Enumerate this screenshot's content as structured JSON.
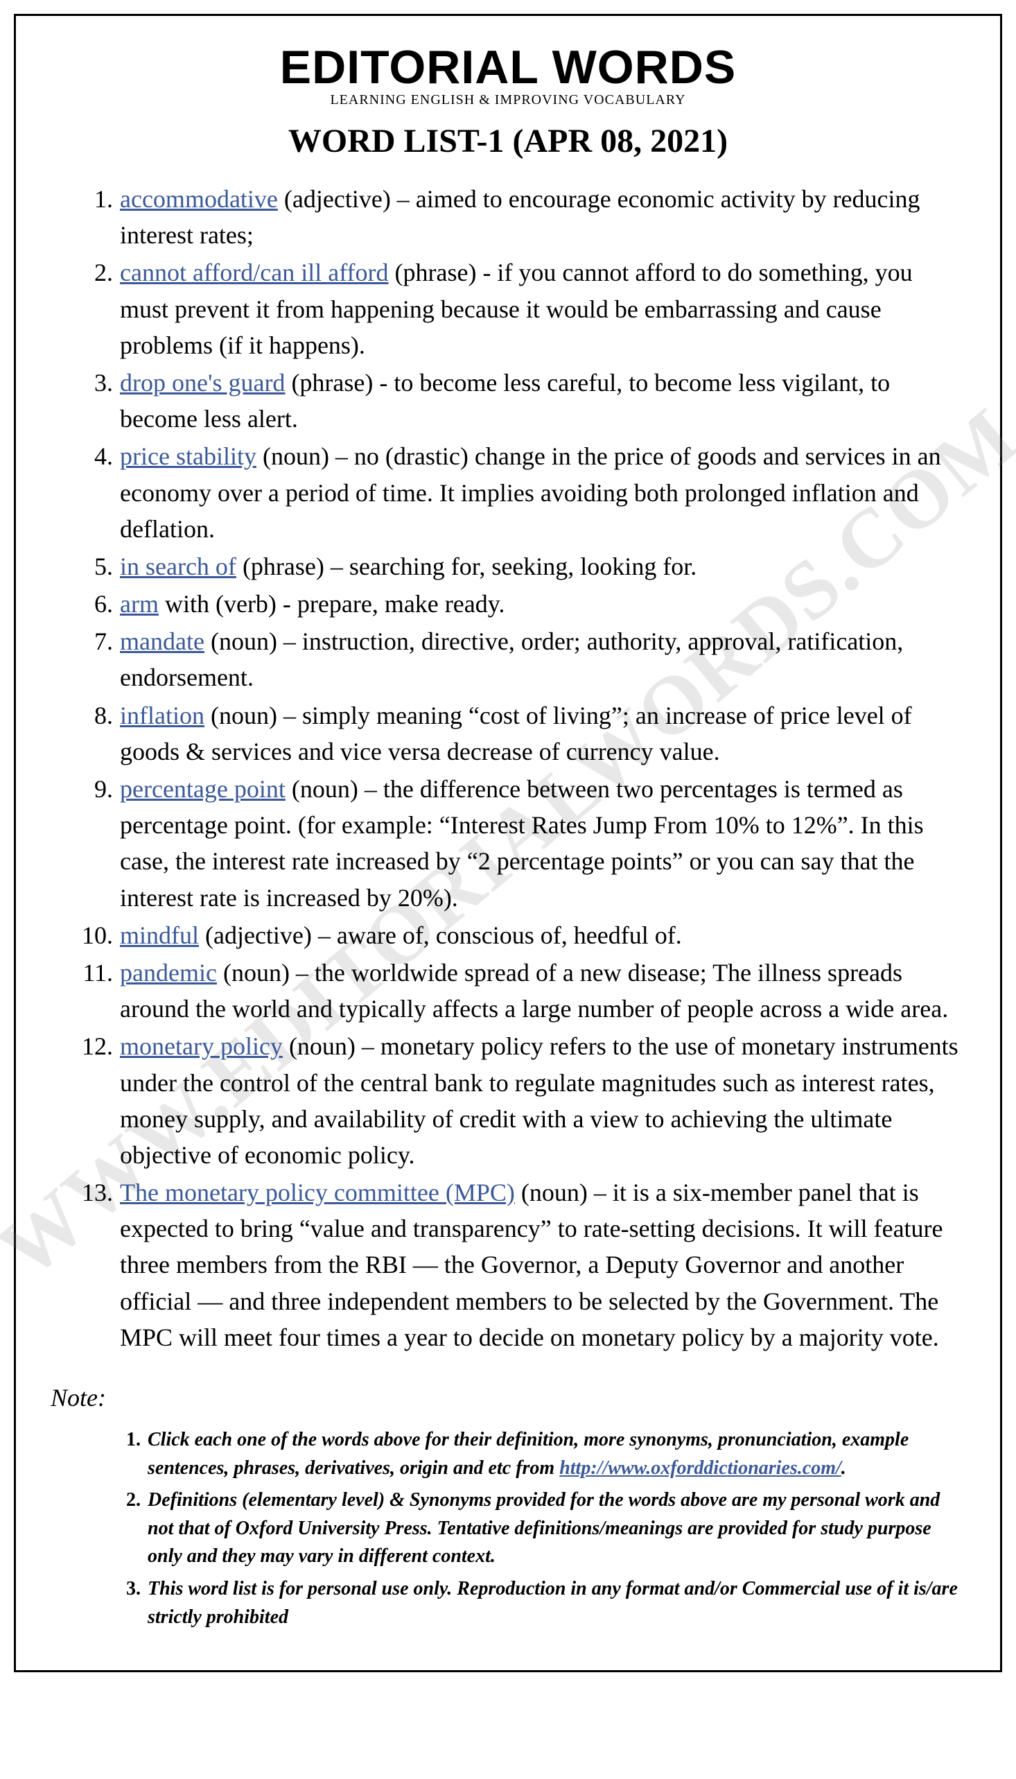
{
  "header": {
    "brand": "EDITORIAL WORDS",
    "tagline": "LEARNING ENGLISH & IMPROVING VOCABULARY",
    "title": "WORD LIST-1 (APR 08, 2021)"
  },
  "watermark": "WWW.EDITORIALWORDS.COM",
  "colors": {
    "link": "#3b5998",
    "text": "#000000",
    "border": "#000000",
    "watermark": "rgba(128,128,128,0.18)"
  },
  "words": [
    {
      "n": "1.",
      "term": "accommodative",
      "rest": " (adjective) – aimed to encourage economic activity by reducing interest rates;"
    },
    {
      "n": "2.",
      "term": "cannot afford/can ill afford",
      "rest": " (phrase) - if you cannot afford to do something, you must prevent it from happening because it would be embarrassing and cause problems (if it happens)."
    },
    {
      "n": "3.",
      "term": "drop one's guard",
      "rest": " (phrase) - to become less careful, to become less vigilant, to become less alert."
    },
    {
      "n": "4.",
      "term": "price stability",
      "rest": " (noun) – no (drastic) change in the price of goods and services in an economy over a period of time. It implies avoiding both prolonged inflation and deflation."
    },
    {
      "n": "5.",
      "term": "in search of",
      "rest": " (phrase) – searching for, seeking, looking for."
    },
    {
      "n": "6.",
      "term": "arm",
      "rest": " with (verb) - prepare, make ready."
    },
    {
      "n": "7.",
      "term": "mandate",
      "rest": " (noun) – instruction, directive, order; authority, approval, ratification, endorsement."
    },
    {
      "n": "8.",
      "term": "inflation",
      "rest": " (noun) – simply meaning “cost of living”; an increase of price level of goods & services and vice versa decrease of currency value."
    },
    {
      "n": "9.",
      "term": "percentage point",
      "rest": " (noun) – the difference between two percentages is termed as percentage point. (for example: “Interest Rates Jump From 10% to 12%”. In this case, the interest rate increased by “2 percentage points” or you can say that the interest rate is increased by 20%)."
    },
    {
      "n": "10.",
      "term": "mindful",
      "rest": " (adjective) – aware of, conscious of, heedful of."
    },
    {
      "n": "11.",
      "term": "pandemic",
      "rest": " (noun) – the worldwide spread of a new disease; The illness spreads around the world and typically affects a large number of people across a wide area."
    },
    {
      "n": "12.",
      "term": "monetary policy",
      "rest": " (noun) – monetary policy refers to the use of monetary instruments under the control of the central bank to regulate magnitudes such as interest rates, money supply, and availability of credit with a view to achieving the ultimate objective of economic policy."
    },
    {
      "n": "13.",
      "term": "The monetary policy committee (MPC)",
      "rest": " (noun) – it is a six-member panel that is expected to bring “value and transparency” to rate-setting decisions. It will feature three members from the RBI — the Governor, a Deputy Governor and another official — and three independent members to be selected by the Government. The MPC will meet four times a year to decide on monetary policy by a majority vote."
    }
  ],
  "note_label": "Note:",
  "notes": [
    {
      "n": "1.",
      "pre": "Click each one of the words above for their definition, more synonyms, pronunciation, example sentences, phrases, derivatives, origin and etc from ",
      "link": "http://www.oxforddictionaries.com/",
      "post": "."
    },
    {
      "n": "2.",
      "pre": "Definitions (elementary level) & Synonyms provided for the words above are my personal work and not that of Oxford University Press. Tentative definitions/meanings are provided for study purpose only and they may vary in different context.",
      "link": "",
      "post": ""
    },
    {
      "n": "3.",
      "pre": "This word list is for personal use only. Reproduction in any format and/or Commercial use of it is/are strictly prohibited",
      "link": "",
      "post": ""
    }
  ]
}
